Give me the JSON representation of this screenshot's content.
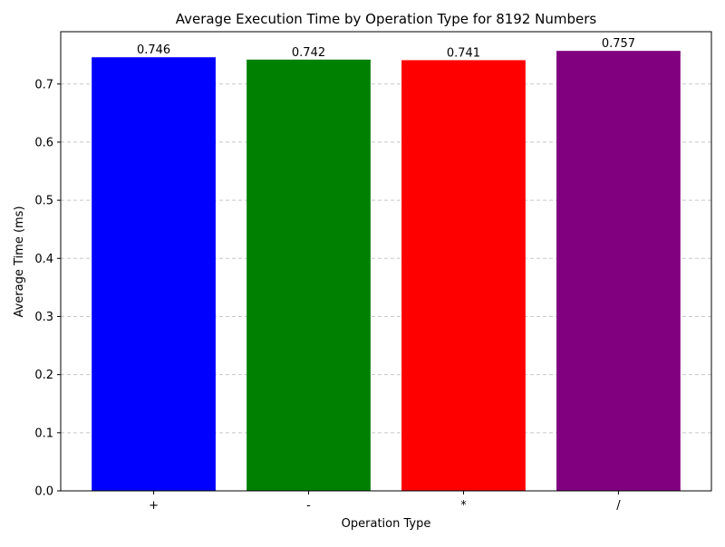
{
  "chart_data": {
    "type": "bar",
    "title": "Average Execution Time by Operation Type for 8192 Numbers",
    "xlabel": "Operation Type",
    "ylabel": "Average Time (ms)",
    "categories": [
      "+",
      "-",
      "*",
      "/"
    ],
    "values": [
      0.746,
      0.742,
      0.741,
      0.757
    ],
    "data_labels": [
      "0.746",
      "0.742",
      "0.741",
      "0.757"
    ],
    "colors": [
      "#0000ff",
      "#008000",
      "#ff0000",
      "#800080"
    ],
    "ylim": [
      0,
      0.79
    ],
    "yticks": [
      0.0,
      0.1,
      0.2,
      0.3,
      0.4,
      0.5,
      0.6,
      0.7
    ],
    "ytick_labels": [
      "0.0",
      "0.1",
      "0.2",
      "0.3",
      "0.4",
      "0.5",
      "0.6",
      "0.7"
    ],
    "grid": "y-axis dashed",
    "legend": "none"
  }
}
